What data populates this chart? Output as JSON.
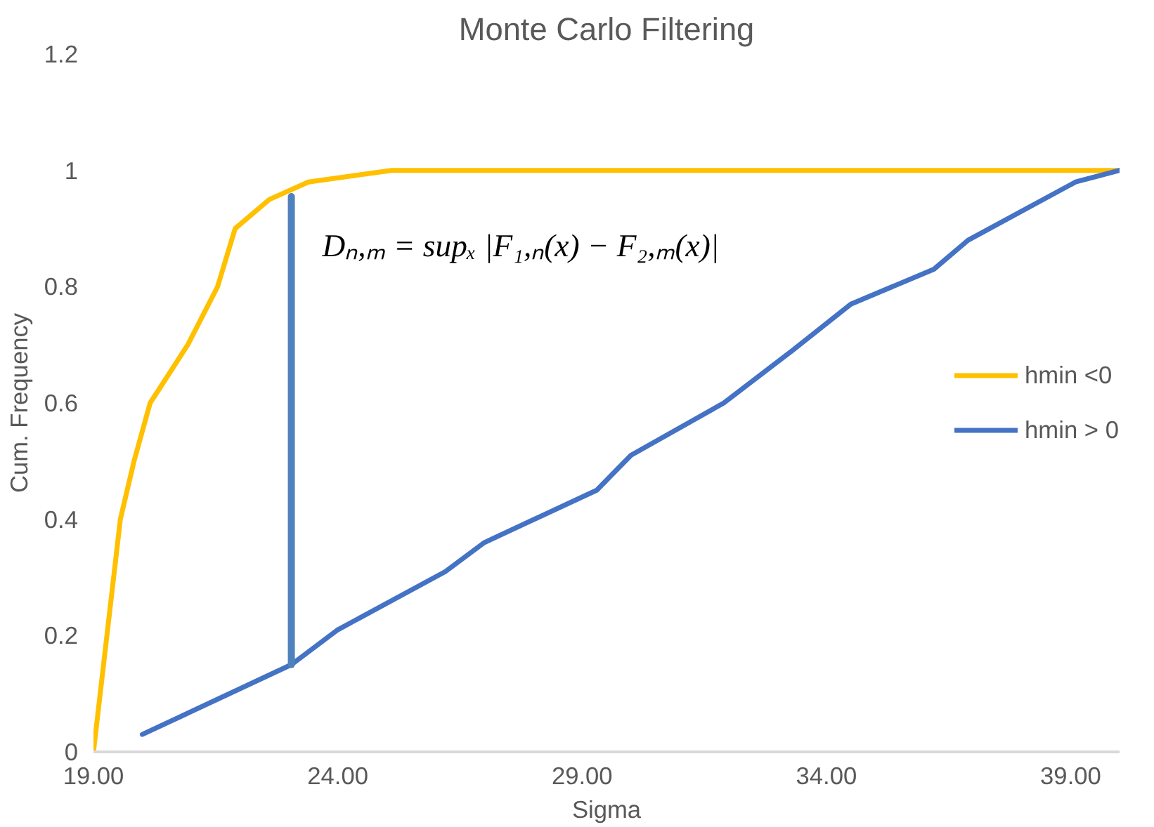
{
  "chart_data": {
    "type": "line",
    "title": "Monte Carlo Filtering",
    "xlabel": "Sigma",
    "ylabel": "Cum. Frequency",
    "xlim": [
      19,
      40
    ],
    "ylim": [
      0,
      1.2
    ],
    "xticks": [
      {
        "value": 19,
        "label": "19.00"
      },
      {
        "value": 24,
        "label": "24.00"
      },
      {
        "value": 29,
        "label": "29.00"
      },
      {
        "value": 34,
        "label": "34.00"
      },
      {
        "value": 39,
        "label": "39.00"
      }
    ],
    "yticks": [
      0,
      0.2,
      0.4,
      0.6,
      0.8,
      1,
      1.2
    ],
    "grid": false,
    "legend": "right",
    "line_style": "solid",
    "marker": "none",
    "series": [
      {
        "name": "hmin <0",
        "color": "#ffc000",
        "x": [
          19,
          19.55,
          19.83,
          20.16,
          20.93,
          21.54,
          21.9,
          22.6,
          23.4,
          25.1,
          40
        ],
        "values": [
          0,
          0.4,
          0.5,
          0.6,
          0.7,
          0.8,
          0.9,
          0.95,
          0.98,
          1,
          1
        ]
      },
      {
        "name": "hmin > 0",
        "color": "#4472c4",
        "x": [
          20,
          23.05,
          24,
          26.2,
          27,
          29.3,
          30,
          31.9,
          33.3,
          34.5,
          36.2,
          36.9,
          39.1,
          40
        ],
        "values": [
          0.03,
          0.15,
          0.21,
          0.31,
          0.36,
          0.45,
          0.51,
          0.6,
          0.69,
          0.77,
          0.83,
          0.88,
          0.98,
          1
        ]
      },
      {
        "color": "#4f81bd",
        "x": [
          23.05,
          23.05
        ],
        "values": [
          0.15,
          0.955
        ]
      }
    ],
    "annotations": [
      {
        "text": "Dₙ,ₘ = supₓ |F₁,ₙ(x) − F₂,ₘ(x)|",
        "x": 23.05,
        "y": 0.87
      }
    ]
  }
}
